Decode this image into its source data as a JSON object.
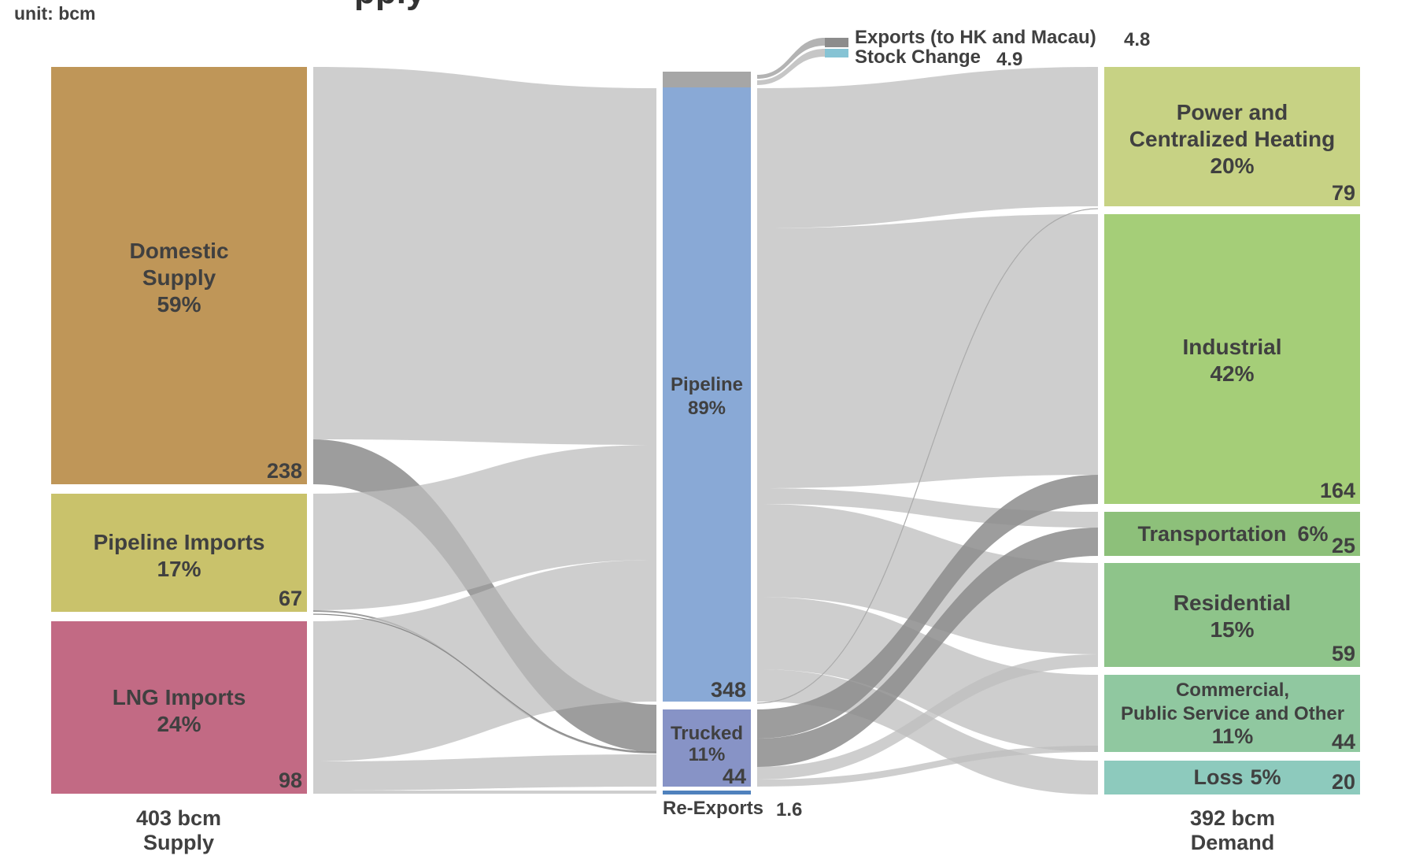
{
  "unit_label": "unit: bcm",
  "title_fragment": "pply",
  "supply_total": {
    "value": "403 bcm",
    "label": "Supply"
  },
  "demand_total": {
    "value": "392 bcm",
    "label": "Demand"
  },
  "chart_data": {
    "type": "sankey",
    "unit": "bcm",
    "nodes": {
      "domestic": {
        "name": [
          "Domestic",
          "Supply"
        ],
        "pct": "59%",
        "value": "238",
        "color": "#BF9658"
      },
      "pipe_imp": {
        "name": [
          "Pipeline Imports"
        ],
        "pct": "17%",
        "value": "67",
        "color": "#C9C26B"
      },
      "lng": {
        "name": [
          "LNG Imports"
        ],
        "pct": "24%",
        "value": "98",
        "color": "#C26A84"
      },
      "pipeline": {
        "name": [
          "Pipeline"
        ],
        "pct": "89%",
        "value": "348",
        "color": "#89A9D6"
      },
      "trucked": {
        "name": [
          "Trucked"
        ],
        "pct": "11%",
        "value": "44",
        "color": "#8793C6"
      },
      "exports": {
        "name": "Exports (to HK and Macau)",
        "value": "4.8",
        "color": "#8C8C8C"
      },
      "stock": {
        "name": "Stock Change",
        "value": "4.9",
        "color": "#86C3D4"
      },
      "reexports": {
        "name": "Re-Exports",
        "value": "1.6",
        "color": "#4F81BD"
      },
      "power": {
        "name": [
          "Power and",
          "Centralized Heating"
        ],
        "pct": "20%",
        "value": "79",
        "color": "#C7D284"
      },
      "industrial": {
        "name": [
          "Industrial"
        ],
        "pct": "42%",
        "value": "164",
        "color": "#A5CE78"
      },
      "transport": {
        "name": [
          "Transportation"
        ],
        "pct": "6%",
        "value": "25",
        "color": "#8DC07A"
      },
      "residential": {
        "name": [
          "Residential"
        ],
        "pct": "15%",
        "value": "59",
        "color": "#8EC48A"
      },
      "commercial": {
        "name": [
          "Commercial,",
          "Public Service and Other"
        ],
        "pct": "11%",
        "value": "44",
        "color": "#90C8A0"
      },
      "loss": {
        "name": [
          "Loss"
        ],
        "pct": "5%",
        "value": "20",
        "color": "#8DCABD"
      }
    },
    "links": [
      {
        "source": "domestic",
        "target": "exports",
        "value": 4.8
      },
      {
        "source": "domestic",
        "target": "stock",
        "value": 4.9
      },
      {
        "source": "domestic",
        "target": "pipeline",
        "value": 200
      },
      {
        "source": "domestic",
        "target": "trucked",
        "value": 28
      },
      {
        "source": "pipe_imp",
        "target": "pipeline",
        "value": 66
      },
      {
        "source": "pipe_imp",
        "target": "trucked",
        "value": 1
      },
      {
        "source": "lng",
        "target": "pipeline",
        "value": 82
      },
      {
        "source": "lng",
        "target": "trucked",
        "value": 15
      },
      {
        "source": "lng",
        "target": "reexports",
        "value": 1.6
      },
      {
        "source": "pipeline",
        "target": "power",
        "value": 79
      },
      {
        "source": "pipeline",
        "target": "industrial",
        "value": 148
      },
      {
        "source": "pipeline",
        "target": "transport",
        "value": 9
      },
      {
        "source": "pipeline",
        "target": "residential",
        "value": 49
      },
      {
        "source": "pipeline",
        "target": "commercial",
        "value": 40
      },
      {
        "source": "pipeline",
        "target": "loss",
        "value": 20
      },
      {
        "source": "trucked",
        "target": "industrial",
        "value": 16
      },
      {
        "source": "trucked",
        "target": "transport",
        "value": 16
      },
      {
        "source": "trucked",
        "target": "residential",
        "value": 10
      },
      {
        "source": "trucked",
        "target": "commercial",
        "value": 4
      }
    ]
  }
}
